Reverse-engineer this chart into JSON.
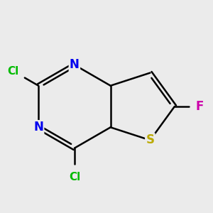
{
  "background_color": "#ebebeb",
  "bond_color": "#000000",
  "bond_width": 1.8,
  "atom_labels": {
    "N1": {
      "text": "N",
      "color": "#0000ee",
      "fontsize": 12,
      "fontweight": "bold"
    },
    "N2": {
      "text": "N",
      "color": "#0000ee",
      "fontsize": 12,
      "fontweight": "bold"
    },
    "S": {
      "text": "S",
      "color": "#bbaa00",
      "fontsize": 12,
      "fontweight": "bold"
    },
    "Cl1": {
      "text": "Cl",
      "color": "#00bb00",
      "fontsize": 11,
      "fontweight": "bold"
    },
    "Cl2": {
      "text": "Cl",
      "color": "#00bb00",
      "fontsize": 11,
      "fontweight": "bold"
    },
    "F": {
      "text": "F",
      "color": "#cc00aa",
      "fontsize": 12,
      "fontweight": "bold"
    }
  }
}
